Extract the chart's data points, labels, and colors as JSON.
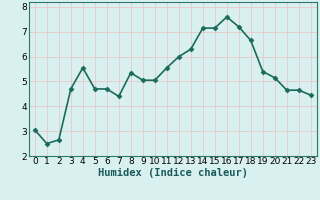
{
  "x": [
    0,
    1,
    2,
    3,
    4,
    5,
    6,
    7,
    8,
    9,
    10,
    11,
    12,
    13,
    14,
    15,
    16,
    17,
    18,
    19,
    20,
    21,
    22,
    23
  ],
  "y": [
    3.05,
    2.5,
    2.65,
    4.7,
    5.55,
    4.7,
    4.7,
    4.4,
    5.35,
    5.05,
    5.05,
    5.55,
    6.0,
    6.3,
    7.15,
    7.15,
    7.6,
    7.2,
    6.65,
    5.4,
    5.15,
    4.65,
    4.65,
    4.45
  ],
  "line_color": "#1a6b5a",
  "marker": "D",
  "marker_size": 2.5,
  "bg_color": "#d9f0f0",
  "grid_color": "#e8c8c8",
  "xlabel": "Humidex (Indice chaleur)",
  "xlim": [
    -0.5,
    23.5
  ],
  "ylim": [
    2.0,
    8.2
  ],
  "yticks": [
    2,
    3,
    4,
    5,
    6,
    7,
    8
  ],
  "xticks": [
    0,
    1,
    2,
    3,
    4,
    5,
    6,
    7,
    8,
    9,
    10,
    11,
    12,
    13,
    14,
    15,
    16,
    17,
    18,
    19,
    20,
    21,
    22,
    23
  ],
  "xlabel_fontsize": 7.5,
  "tick_fontsize": 6.5,
  "line_width": 1.2,
  "spine_color": "#2a7a6a"
}
